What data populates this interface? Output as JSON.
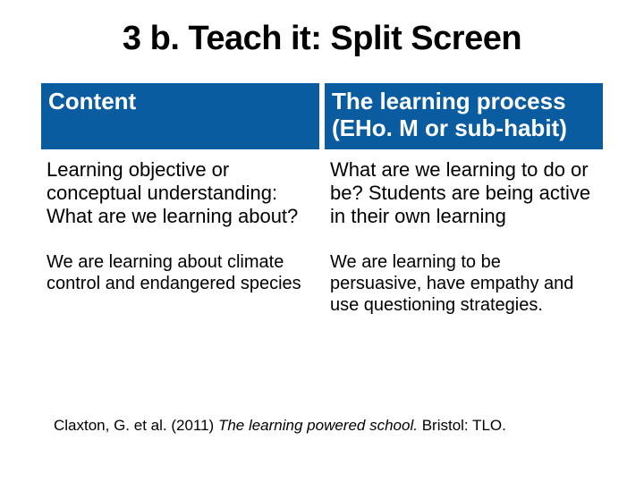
{
  "slide": {
    "title": "3 b. Teach it: Split Screen",
    "table": {
      "header_bg": "#0a5ca0",
      "header_color": "#ffffff",
      "columns": [
        {
          "header": "Content"
        },
        {
          "header": "The learning process (EHo. M or sub-habit)"
        }
      ],
      "rows": [
        {
          "left": "Learning objective or conceptual understanding: What are we learning about?",
          "right": "What are we learning to do or be? Students are being active in their own learning"
        },
        {
          "left": "We are learning about climate control and endangered species",
          "right": "We are learning to be persuasive, have empathy and use questioning strategies."
        }
      ]
    },
    "citation": {
      "prefix": "Claxton, G. et al. (2011) ",
      "title_italic": "The learning powered school. ",
      "suffix": "Bristol: TLO."
    }
  }
}
